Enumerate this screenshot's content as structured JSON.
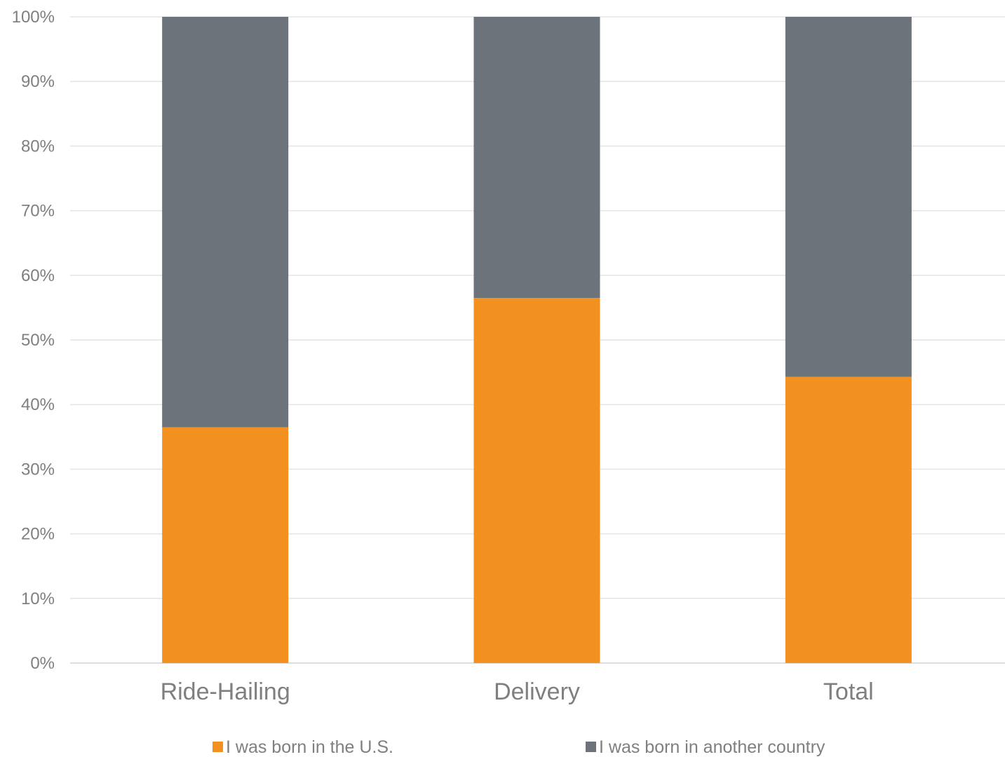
{
  "chart_data": {
    "type": "bar",
    "stacked": true,
    "percent_stacked": true,
    "categories": [
      "Ride-Hailing",
      "Delivery",
      "Total"
    ],
    "series": [
      {
        "name": "I was born in the U.S.",
        "color": "#F39120",
        "values": [
          36.5,
          56.5,
          44.3
        ]
      },
      {
        "name": "I was born in another country",
        "color": "#6C737A",
        "values": [
          63.5,
          43.5,
          55.7
        ]
      }
    ],
    "y_ticks": [
      "0%",
      "10%",
      "20%",
      "30%",
      "40%",
      "50%",
      "60%",
      "70%",
      "80%",
      "90%",
      "100%"
    ],
    "ylim": [
      0,
      100
    ],
    "grid": true,
    "legend_position": "bottom"
  }
}
